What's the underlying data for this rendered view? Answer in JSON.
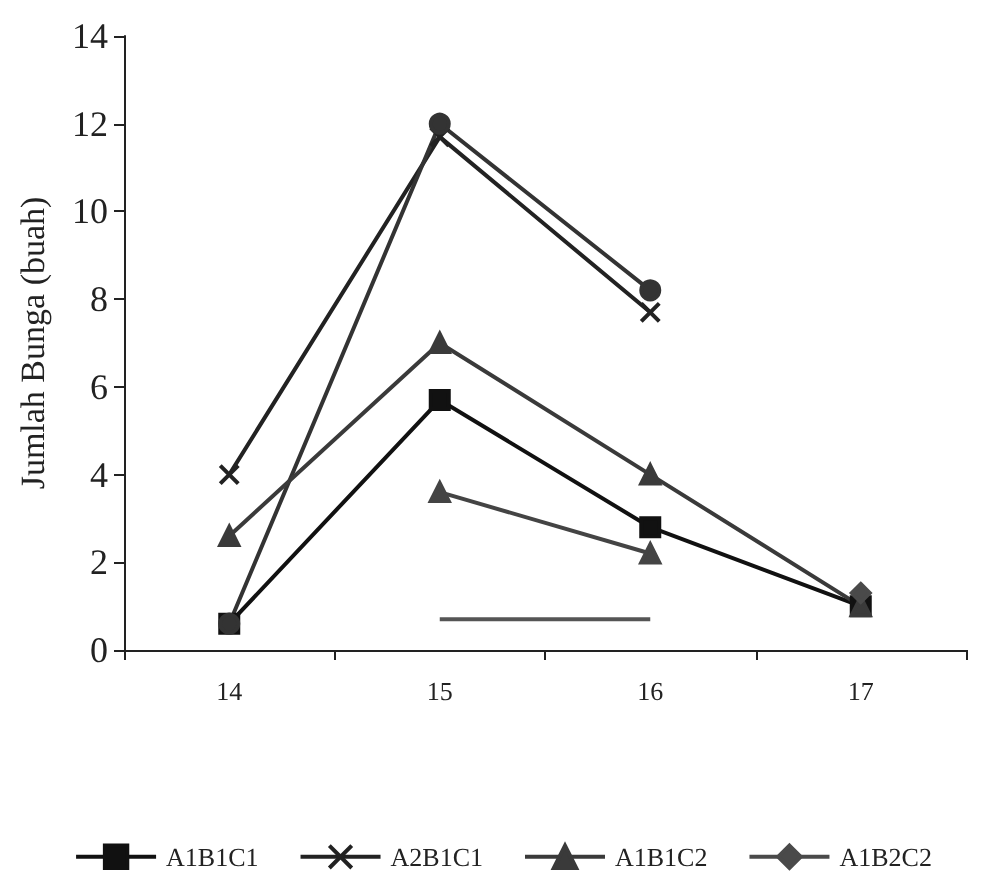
{
  "chart_data": {
    "type": "line",
    "ylabel": "Jumlah Bunga (buah)",
    "categories": [
      "14",
      "15",
      "16",
      "17"
    ],
    "ylim": [
      0,
      14
    ],
    "yticks": [
      0,
      2,
      4,
      6,
      8,
      10,
      12,
      14
    ],
    "grid": false,
    "legend": "bottom",
    "series": [
      {
        "name": "A1B1C1",
        "color": "#111111",
        "marker": "square",
        "values": [
          0.6,
          5.7,
          2.8,
          1.0
        ]
      },
      {
        "name": "A2B1C1",
        "color": "#222222",
        "marker": "cross",
        "values": [
          4,
          11.7,
          7.7,
          null
        ]
      },
      {
        "color": "#333333",
        "marker": "circle",
        "values": [
          0.6,
          12,
          8.2,
          null
        ]
      },
      {
        "color": "#444444",
        "marker": "triangle",
        "values": [
          null,
          3.6,
          2.2,
          null
        ]
      },
      {
        "color": "#555555",
        "marker": "none",
        "values": [
          null,
          0.7,
          0.7,
          null
        ]
      },
      {
        "name": "A1B1C2",
        "color": "#3a3a3a",
        "marker": "triangle",
        "values": [
          2.6,
          7.0,
          4.0,
          1.0
        ]
      },
      {
        "name": "A1B2C2",
        "color": "#4a4a4a",
        "marker": "diamond",
        "values": [
          null,
          null,
          null,
          1.3
        ]
      }
    ]
  }
}
